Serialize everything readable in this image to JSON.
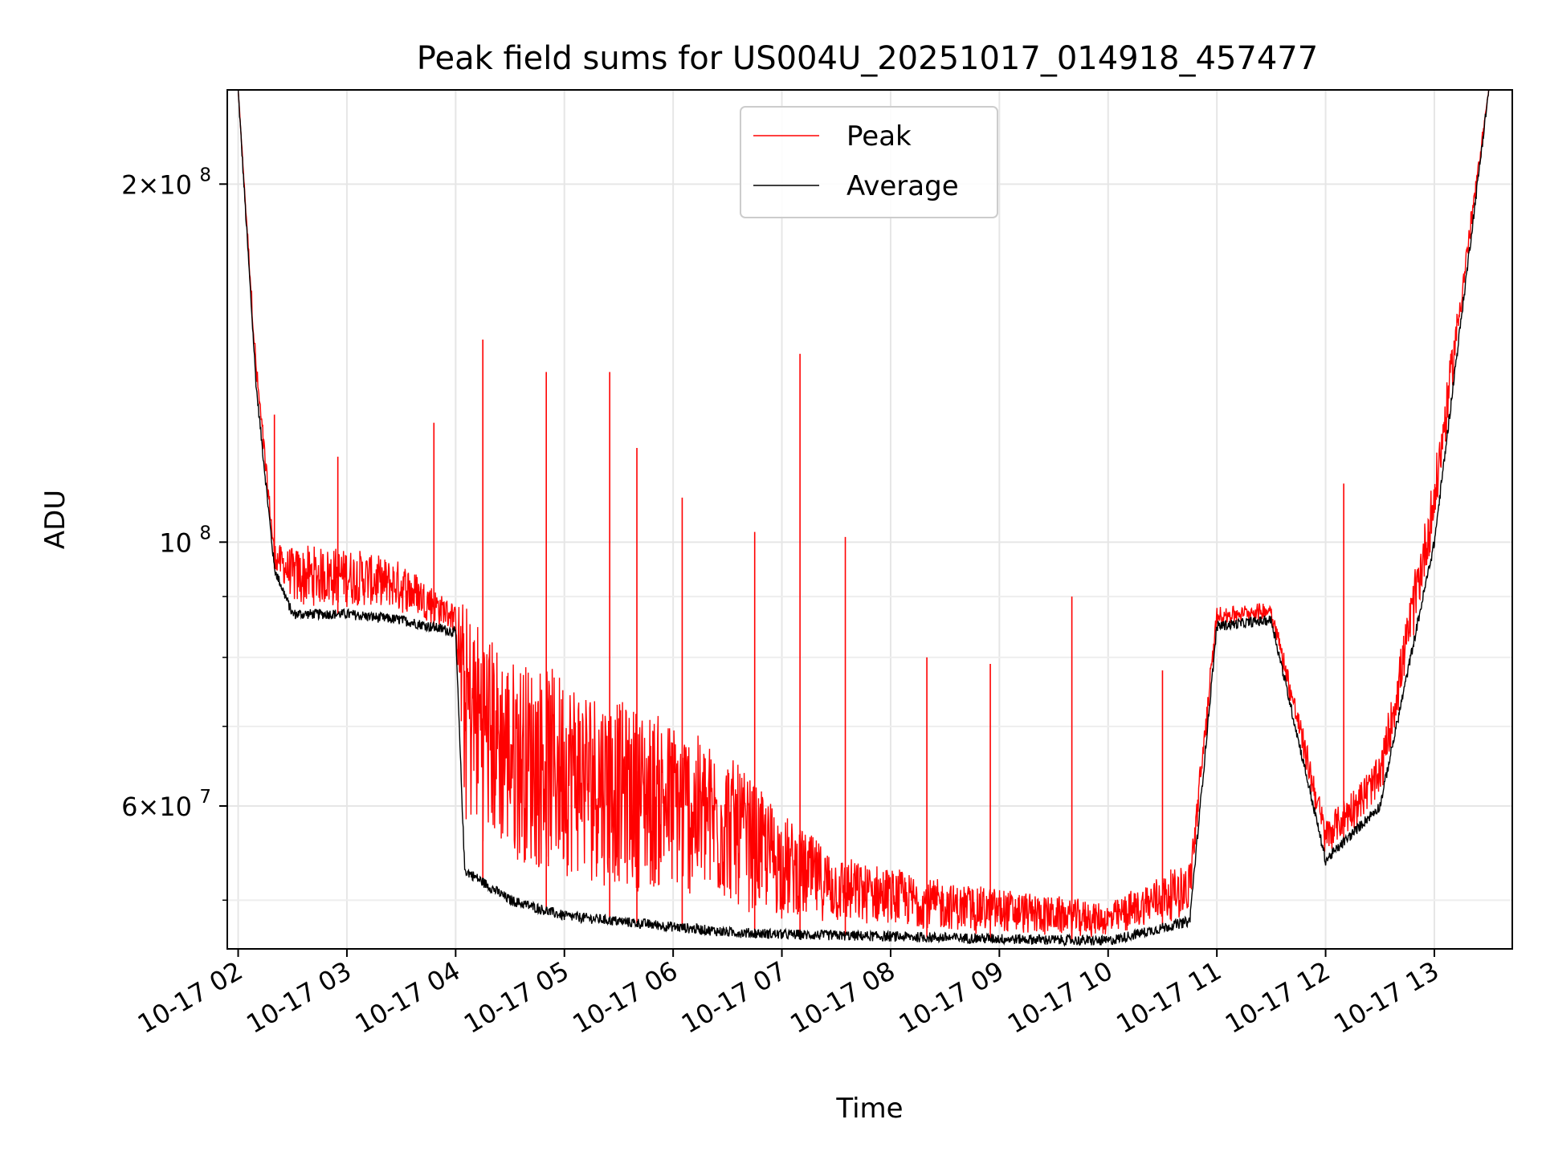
{
  "chart_data": {
    "type": "line",
    "title": "Peak field sums for US004U_20251017_014918_457477",
    "xlabel": "Time",
    "ylabel": "ADU",
    "yscale": "log",
    "ylim": [
      45500000,
      240000000
    ],
    "xlim": [
      "2025-10-17 01:54",
      "2025-10-17 13:43"
    ],
    "grid": true,
    "legend_position": "top-center",
    "x_ticks": [
      "10-17 02",
      "10-17 03",
      "10-17 04",
      "10-17 05",
      "10-17 06",
      "10-17 07",
      "10-17 08",
      "10-17 09",
      "10-17 10",
      "10-17 11",
      "10-17 12",
      "10-17 13"
    ],
    "y_major_ticks": [
      {
        "value": 100000000,
        "mantissa": "",
        "exponent": "8"
      },
      {
        "value": 200000000,
        "mantissa": "2",
        "exponent": "8"
      },
      {
        "value": 60000000,
        "mantissa": "6",
        "exponent": "7"
      }
    ],
    "y_minor_ticks": [
      50000000,
      70000000,
      80000000,
      90000000
    ],
    "x": [
      "2025-10-17 02:00",
      "2025-10-17 02:10",
      "2025-10-17 02:20",
      "2025-10-17 02:30",
      "2025-10-17 03:00",
      "2025-10-17 03:30",
      "2025-10-17 04:00",
      "2025-10-17 04:05",
      "2025-10-17 04:30",
      "2025-10-17 05:00",
      "2025-10-17 05:30",
      "2025-10-17 06:00",
      "2025-10-17 06:30",
      "2025-10-17 07:00",
      "2025-10-17 07:30",
      "2025-10-17 08:00",
      "2025-10-17 08:30",
      "2025-10-17 09:00",
      "2025-10-17 09:30",
      "2025-10-17 10:00",
      "2025-10-17 10:45",
      "2025-10-17 11:00",
      "2025-10-17 11:30",
      "2025-10-17 12:00",
      "2025-10-17 12:30",
      "2025-10-17 13:00",
      "2025-10-17 13:30"
    ],
    "series": [
      {
        "name": "Peak",
        "color": "#ff0000",
        "values": [
          240000000,
          140000000,
          98000000,
          95000000,
          95000000,
          93000000,
          87000000,
          77000000,
          70000000,
          68000000,
          65000000,
          63000000,
          60000000,
          55000000,
          52000000,
          51000000,
          50000000,
          49500000,
          49000000,
          48500000,
          52000000,
          87000000,
          88000000,
          57000000,
          64000000,
          110000000,
          240000000
        ]
      },
      {
        "name": "Average",
        "color": "#000000",
        "values": [
          240000000,
          135000000,
          95000000,
          87000000,
          87000000,
          86000000,
          84000000,
          53000000,
          50000000,
          48500000,
          48000000,
          47500000,
          47000000,
          46800000,
          46700000,
          46600000,
          46500000,
          46400000,
          46300000,
          46200000,
          48000000,
          85000000,
          86000000,
          54000000,
          60000000,
          100000000,
          240000000
        ]
      }
    ],
    "spikes": [
      {
        "x": "2025-10-17 02:20",
        "peak": 128000000
      },
      {
        "x": "2025-10-17 02:55",
        "peak": 118000000
      },
      {
        "x": "2025-10-17 03:48",
        "peak": 126000000
      },
      {
        "x": "2025-10-17 04:15",
        "peak": 148000000
      },
      {
        "x": "2025-10-17 04:50",
        "peak": 139000000
      },
      {
        "x": "2025-10-17 05:25",
        "peak": 139000000
      },
      {
        "x": "2025-10-17 05:40",
        "peak": 120000000
      },
      {
        "x": "2025-10-17 06:05",
        "peak": 109000000
      },
      {
        "x": "2025-10-17 06:45",
        "peak": 102000000
      },
      {
        "x": "2025-10-17 07:10",
        "peak": 144000000
      },
      {
        "x": "2025-10-17 07:35",
        "peak": 101000000
      },
      {
        "x": "2025-10-17 08:20",
        "peak": 80000000
      },
      {
        "x": "2025-10-17 08:55",
        "peak": 79000000
      },
      {
        "x": "2025-10-17 09:40",
        "peak": 90000000
      },
      {
        "x": "2025-10-17 10:30",
        "peak": 78000000
      },
      {
        "x": "2025-10-17 12:10",
        "peak": 112000000
      }
    ]
  }
}
